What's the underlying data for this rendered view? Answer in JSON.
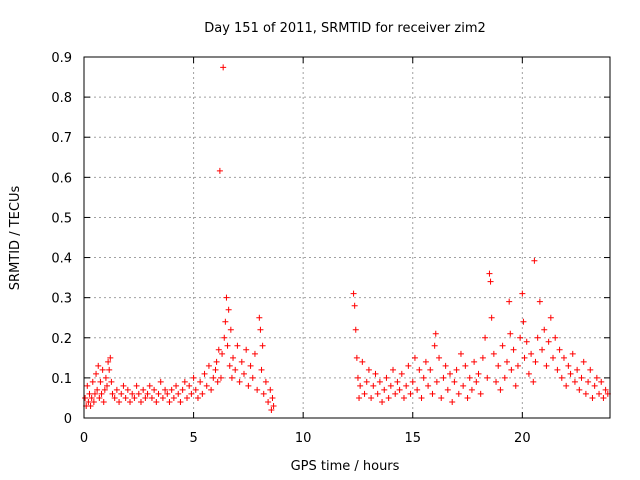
{
  "chart_data": {
    "type": "scatter",
    "title": "Day 151 of 2011, SRMTID for receiver zim2",
    "xlabel": "GPS time / hours",
    "ylabel": "SRMTID / TECUs",
    "xlim": [
      0,
      24
    ],
    "ylim": [
      0,
      0.9
    ],
    "x_ticks": [
      0,
      5,
      10,
      15,
      20
    ],
    "y_ticks": [
      0,
      0.1,
      0.2,
      0.3,
      0.4,
      0.5,
      0.6,
      0.7,
      0.8,
      0.9
    ],
    "x_tick_labels": [
      "0",
      "5",
      "10",
      "15",
      "20"
    ],
    "y_tick_labels": [
      "0",
      "0.1",
      "0.2",
      "0.3",
      "0.4",
      "0.5",
      "0.6",
      "0.7",
      "0.8",
      "0.9"
    ],
    "grid": true,
    "marker": "+",
    "color": "#ff0000",
    "series": [
      {
        "name": "zim2",
        "points": [
          [
            0.05,
            0.05
          ],
          [
            0.1,
            0.03
          ],
          [
            0.15,
            0.08
          ],
          [
            0.2,
            0.04
          ],
          [
            0.25,
            0.06
          ],
          [
            0.3,
            0.03
          ],
          [
            0.35,
            0.05
          ],
          [
            0.4,
            0.09
          ],
          [
            0.45,
            0.04
          ],
          [
            0.5,
            0.06
          ],
          [
            0.55,
            0.11
          ],
          [
            0.6,
            0.07
          ],
          [
            0.65,
            0.13
          ],
          [
            0.7,
            0.05
          ],
          [
            0.75,
            0.09
          ],
          [
            0.8,
            0.06
          ],
          [
            0.85,
            0.12
          ],
          [
            0.9,
            0.04
          ],
          [
            0.95,
            0.07
          ],
          [
            1.0,
            0.1
          ],
          [
            1.05,
            0.08
          ],
          [
            1.1,
            0.14
          ],
          [
            1.15,
            0.12
          ],
          [
            1.2,
            0.15
          ],
          [
            1.25,
            0.09
          ],
          [
            1.3,
            0.06
          ],
          [
            1.4,
            0.05
          ],
          [
            1.5,
            0.07
          ],
          [
            1.6,
            0.04
          ],
          [
            1.7,
            0.06
          ],
          [
            1.8,
            0.08
          ],
          [
            1.9,
            0.05
          ],
          [
            2.0,
            0.07
          ],
          [
            2.1,
            0.04
          ],
          [
            2.2,
            0.06
          ],
          [
            2.3,
            0.05
          ],
          [
            2.4,
            0.08
          ],
          [
            2.5,
            0.06
          ],
          [
            2.6,
            0.04
          ],
          [
            2.7,
            0.07
          ],
          [
            2.8,
            0.05
          ],
          [
            2.9,
            0.06
          ],
          [
            3.0,
            0.08
          ],
          [
            3.1,
            0.05
          ],
          [
            3.2,
            0.07
          ],
          [
            3.3,
            0.04
          ],
          [
            3.4,
            0.06
          ],
          [
            3.5,
            0.09
          ],
          [
            3.6,
            0.05
          ],
          [
            3.7,
            0.07
          ],
          [
            3.8,
            0.06
          ],
          [
            3.9,
            0.04
          ],
          [
            4.0,
            0.07
          ],
          [
            4.1,
            0.05
          ],
          [
            4.2,
            0.08
          ],
          [
            4.3,
            0.06
          ],
          [
            4.4,
            0.04
          ],
          [
            4.5,
            0.07
          ],
          [
            4.6,
            0.09
          ],
          [
            4.7,
            0.05
          ],
          [
            4.8,
            0.08
          ],
          [
            4.9,
            0.06
          ],
          [
            5.0,
            0.1
          ],
          [
            5.1,
            0.07
          ],
          [
            5.2,
            0.05
          ],
          [
            5.3,
            0.09
          ],
          [
            5.4,
            0.06
          ],
          [
            5.5,
            0.11
          ],
          [
            5.6,
            0.08
          ],
          [
            5.7,
            0.13
          ],
          [
            5.8,
            0.07
          ],
          [
            5.9,
            0.1
          ],
          [
            6.0,
            0.12
          ],
          [
            6.05,
            0.14
          ],
          [
            6.1,
            0.09
          ],
          [
            6.15,
            0.17
          ],
          [
            6.2,
            0.616
          ],
          [
            6.25,
            0.1
          ],
          [
            6.3,
            0.16
          ],
          [
            6.35,
            0.874
          ],
          [
            6.4,
            0.2
          ],
          [
            6.45,
            0.24
          ],
          [
            6.5,
            0.3
          ],
          [
            6.55,
            0.18
          ],
          [
            6.6,
            0.27
          ],
          [
            6.65,
            0.13
          ],
          [
            6.7,
            0.22
          ],
          [
            6.75,
            0.1
          ],
          [
            6.8,
            0.15
          ],
          [
            6.9,
            0.12
          ],
          [
            7.0,
            0.18
          ],
          [
            7.1,
            0.09
          ],
          [
            7.2,
            0.14
          ],
          [
            7.3,
            0.11
          ],
          [
            7.4,
            0.17
          ],
          [
            7.5,
            0.08
          ],
          [
            7.6,
            0.13
          ],
          [
            7.7,
            0.1
          ],
          [
            7.8,
            0.16
          ],
          [
            7.9,
            0.07
          ],
          [
            8.0,
            0.25
          ],
          [
            8.05,
            0.22
          ],
          [
            8.1,
            0.12
          ],
          [
            8.15,
            0.18
          ],
          [
            8.2,
            0.06
          ],
          [
            8.3,
            0.09
          ],
          [
            8.4,
            0.04
          ],
          [
            8.5,
            0.07
          ],
          [
            8.55,
            0.02
          ],
          [
            8.6,
            0.05
          ],
          [
            8.65,
            0.03
          ],
          [
            12.3,
            0.31
          ],
          [
            12.35,
            0.28
          ],
          [
            12.4,
            0.22
          ],
          [
            12.45,
            0.15
          ],
          [
            12.5,
            0.1
          ],
          [
            12.55,
            0.05
          ],
          [
            12.6,
            0.08
          ],
          [
            12.7,
            0.14
          ],
          [
            12.8,
            0.06
          ],
          [
            12.9,
            0.09
          ],
          [
            13.0,
            0.12
          ],
          [
            13.1,
            0.05
          ],
          [
            13.2,
            0.08
          ],
          [
            13.3,
            0.11
          ],
          [
            13.4,
            0.06
          ],
          [
            13.5,
            0.09
          ],
          [
            13.6,
            0.04
          ],
          [
            13.7,
            0.07
          ],
          [
            13.8,
            0.1
          ],
          [
            13.9,
            0.05
          ],
          [
            14.0,
            0.08
          ],
          [
            14.1,
            0.12
          ],
          [
            14.2,
            0.06
          ],
          [
            14.3,
            0.09
          ],
          [
            14.4,
            0.07
          ],
          [
            14.5,
            0.11
          ],
          [
            14.6,
            0.05
          ],
          [
            14.7,
            0.08
          ],
          [
            14.8,
            0.13
          ],
          [
            14.9,
            0.06
          ],
          [
            15.0,
            0.09
          ],
          [
            15.1,
            0.15
          ],
          [
            15.2,
            0.07
          ],
          [
            15.3,
            0.12
          ],
          [
            15.4,
            0.05
          ],
          [
            15.5,
            0.1
          ],
          [
            15.6,
            0.14
          ],
          [
            15.7,
            0.08
          ],
          [
            15.8,
            0.12
          ],
          [
            15.9,
            0.06
          ],
          [
            16.0,
            0.18
          ],
          [
            16.05,
            0.21
          ],
          [
            16.1,
            0.09
          ],
          [
            16.2,
            0.15
          ],
          [
            16.3,
            0.05
          ],
          [
            16.4,
            0.1
          ],
          [
            16.5,
            0.13
          ],
          [
            16.6,
            0.07
          ],
          [
            16.7,
            0.11
          ],
          [
            16.8,
            0.04
          ],
          [
            16.9,
            0.09
          ],
          [
            17.0,
            0.12
          ],
          [
            17.1,
            0.06
          ],
          [
            17.2,
            0.16
          ],
          [
            17.3,
            0.08
          ],
          [
            17.4,
            0.13
          ],
          [
            17.5,
            0.05
          ],
          [
            17.6,
            0.1
          ],
          [
            17.7,
            0.07
          ],
          [
            17.8,
            0.14
          ],
          [
            17.9,
            0.09
          ],
          [
            18.0,
            0.11
          ],
          [
            18.1,
            0.06
          ],
          [
            18.2,
            0.15
          ],
          [
            18.3,
            0.2
          ],
          [
            18.4,
            0.1
          ],
          [
            18.5,
            0.36
          ],
          [
            18.55,
            0.34
          ],
          [
            18.6,
            0.25
          ],
          [
            18.7,
            0.16
          ],
          [
            18.8,
            0.09
          ],
          [
            18.9,
            0.13
          ],
          [
            19.0,
            0.07
          ],
          [
            19.1,
            0.18
          ],
          [
            19.2,
            0.1
          ],
          [
            19.3,
            0.14
          ],
          [
            19.4,
            0.29
          ],
          [
            19.45,
            0.21
          ],
          [
            19.5,
            0.12
          ],
          [
            19.6,
            0.17
          ],
          [
            19.7,
            0.08
          ],
          [
            19.8,
            0.13
          ],
          [
            19.9,
            0.2
          ],
          [
            20.0,
            0.31
          ],
          [
            20.05,
            0.24
          ],
          [
            20.1,
            0.15
          ],
          [
            20.2,
            0.19
          ],
          [
            20.3,
            0.11
          ],
          [
            20.4,
            0.16
          ],
          [
            20.5,
            0.09
          ],
          [
            20.55,
            0.392
          ],
          [
            20.6,
            0.14
          ],
          [
            20.7,
            0.2
          ],
          [
            20.8,
            0.29
          ],
          [
            20.9,
            0.17
          ],
          [
            21.0,
            0.22
          ],
          [
            21.1,
            0.13
          ],
          [
            21.2,
            0.19
          ],
          [
            21.3,
            0.25
          ],
          [
            21.4,
            0.15
          ],
          [
            21.5,
            0.2
          ],
          [
            21.6,
            0.12
          ],
          [
            21.7,
            0.17
          ],
          [
            21.8,
            0.1
          ],
          [
            21.9,
            0.15
          ],
          [
            22.0,
            0.08
          ],
          [
            22.1,
            0.13
          ],
          [
            22.2,
            0.11
          ],
          [
            22.3,
            0.16
          ],
          [
            22.4,
            0.09
          ],
          [
            22.5,
            0.12
          ],
          [
            22.6,
            0.07
          ],
          [
            22.7,
            0.1
          ],
          [
            22.8,
            0.14
          ],
          [
            22.9,
            0.06
          ],
          [
            23.0,
            0.09
          ],
          [
            23.1,
            0.12
          ],
          [
            23.2,
            0.05
          ],
          [
            23.3,
            0.08
          ],
          [
            23.4,
            0.1
          ],
          [
            23.5,
            0.06
          ],
          [
            23.6,
            0.09
          ],
          [
            23.7,
            0.05
          ],
          [
            23.8,
            0.07
          ],
          [
            23.9,
            0.06
          ]
        ]
      }
    ]
  }
}
